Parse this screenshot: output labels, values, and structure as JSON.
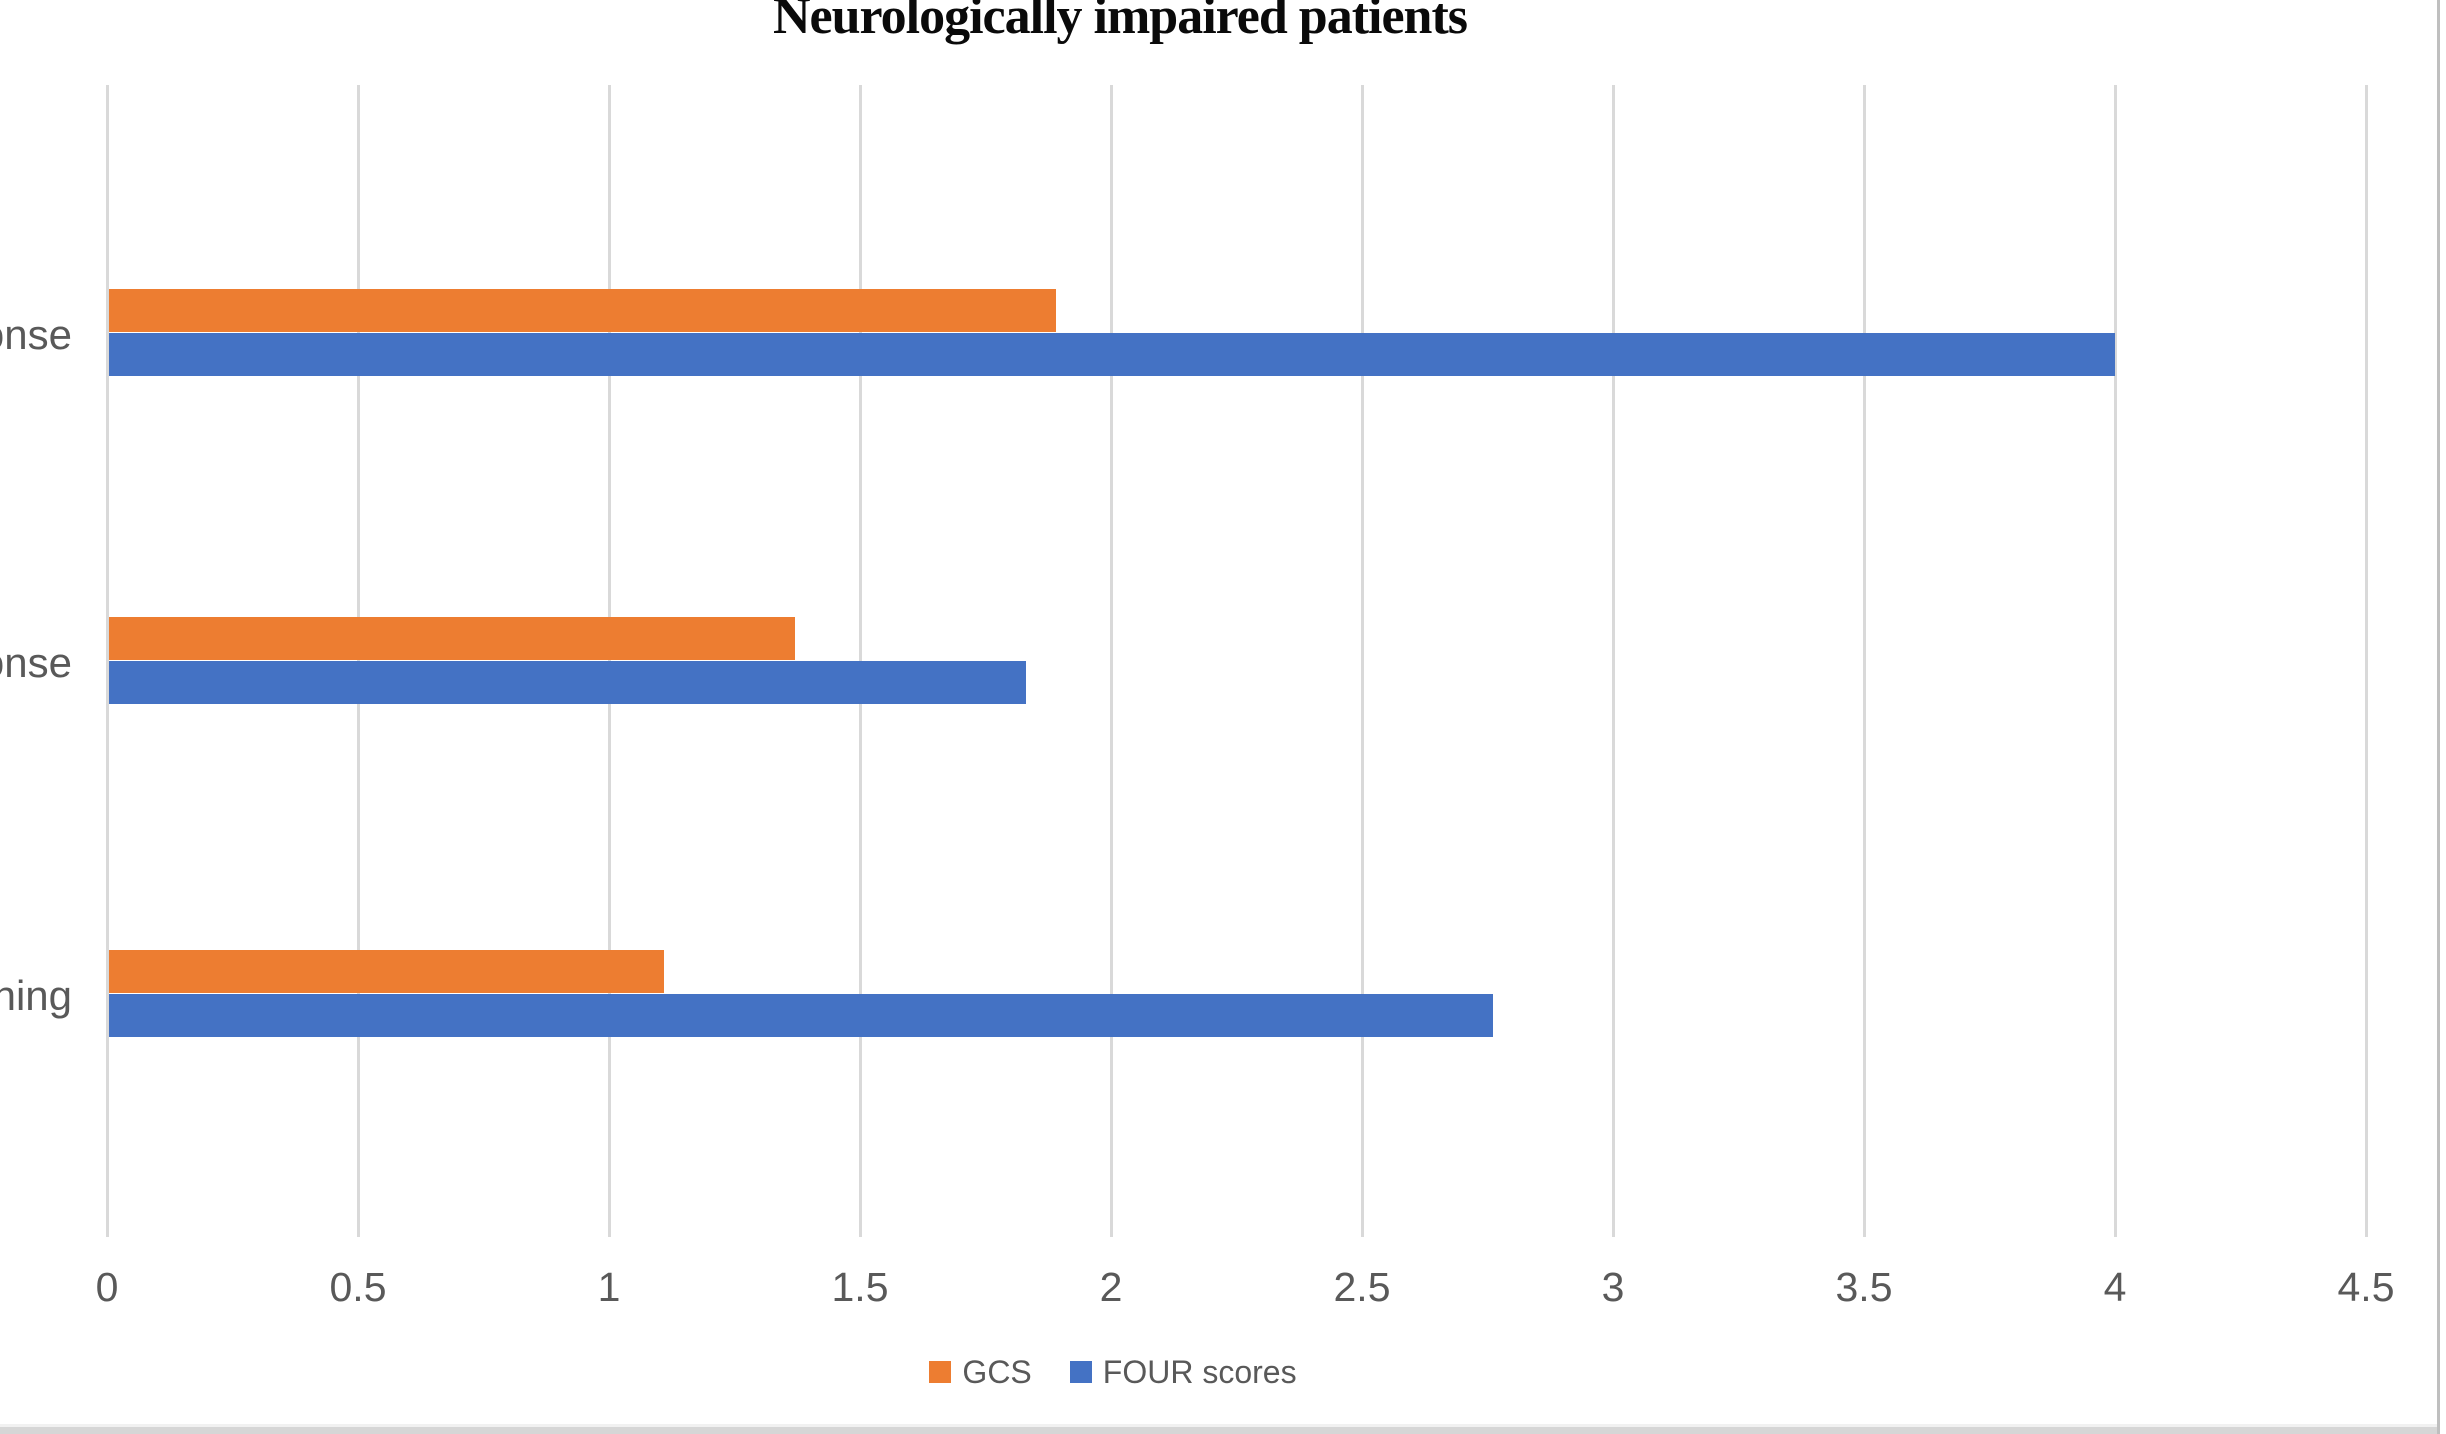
{
  "chart": {
    "title": "Neurologically impaired patients",
    "legend": {
      "items": [
        {
          "label": "GCS",
          "color": "#ED7D31"
        },
        {
          "label": "FOUR scores",
          "color": "#4472C4"
        }
      ]
    },
    "colors": {
      "gcs_orange": "#ED7D31",
      "four_blue": "#4472C4",
      "gridline_gray": "#D9D9D9",
      "text_gray": "#595959"
    }
  },
  "chart_data": {
    "type": "bar",
    "orientation": "horizontal",
    "title": "Neurologically impaired patients",
    "categories": [
      "onse",
      "onse",
      "ening"
    ],
    "series": [
      {
        "name": "GCS",
        "color": "#ED7D31",
        "values": [
          1.89,
          1.37,
          1.11
        ]
      },
      {
        "name": "FOUR scores",
        "color": "#4472C4",
        "values": [
          4.0,
          1.83,
          2.76
        ]
      }
    ],
    "xlim": [
      0,
      4.5
    ],
    "x_ticks": [
      0,
      0.5,
      1,
      1.5,
      2,
      2.5,
      3,
      3.5,
      4,
      4.5
    ],
    "x_tick_labels": [
      "0",
      "0.5",
      "1",
      "1.5",
      "2",
      "2.5",
      "3",
      "3.5",
      "4",
      "4.5"
    ],
    "xlabel": "",
    "ylabel": "",
    "grid": true,
    "legend_position": "bottom"
  }
}
